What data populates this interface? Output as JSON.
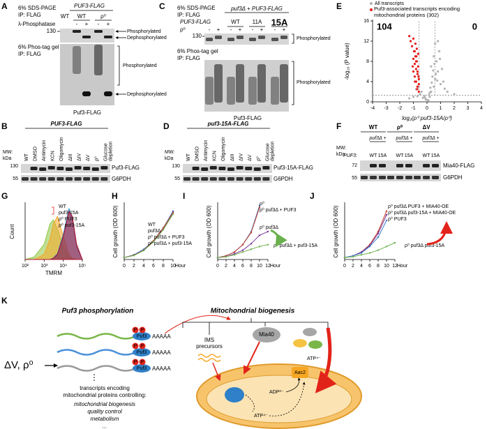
{
  "panels": {
    "A": {
      "label": "A",
      "gel_top": "6% SDS-PAGE",
      "ip_top": "IP: FLAG",
      "construct": "PUF3-FLAG",
      "strains": [
        "WT",
        "WT",
        "ρ⁰"
      ],
      "treatment": "λ-Phosphatase",
      "treatment_signs": [
        "-",
        "+",
        "-",
        "+"
      ],
      "mw": "130",
      "top_bands": [
        "Phosphorylated",
        "Dephosphorylated"
      ],
      "gel_bottom": "6% Phos-tag gel",
      "ip_bottom": "IP: FLAG",
      "bottom_bands": [
        "Phosphorylated",
        "Dephosphorylated"
      ],
      "blot": "Puf3-FLAG"
    },
    "B": {
      "label": "B",
      "construct": "PUF3-FLAG",
      "mw_label": "MW:",
      "mw_unit": "kDa",
      "lanes": [
        "WT",
        "DMSO",
        "Antimycin",
        "KCN",
        "Oligomycin",
        "ΔIII",
        "ΔIV",
        "ΔV",
        "ρ⁰",
        "Glucose depletion"
      ],
      "lane_colors": [
        "#000000",
        "#000000",
        "#000000",
        "#000000",
        "#d0021b",
        "#000000",
        "#000000",
        "#d0021b",
        "#d0021b",
        "#d0021b"
      ],
      "mw": [
        "130",
        "55"
      ],
      "blots": [
        "Puf3-FLAG",
        "G6PDH"
      ]
    },
    "C": {
      "label": "C",
      "gel_top": "6% SDS-PAGE",
      "ip_top": "IP: FLAG",
      "construct": "puf3Δ + PUF3-FLAG",
      "groups": [
        "PUF3-FLAG",
        "WT",
        "11A",
        "15A"
      ],
      "group_colors": [
        "#000000",
        "#000000",
        "#000000",
        "#d0021b"
      ],
      "treatment": "ρ⁰",
      "treatment_signs": [
        "-",
        "+",
        "-",
        "+",
        "-",
        "+",
        "-",
        "+"
      ],
      "mw": "130",
      "top_band": "Phosphorylated",
      "gel_bottom": "6% Phos-tag gel",
      "ip_bottom": "IP: FLAG",
      "bottom_band": "Phosphorylated",
      "blot": "Puf3-FLAG"
    },
    "D": {
      "label": "D",
      "construct": "puf3-15A-FLAG",
      "mw_label": "MW:",
      "mw_unit": "kDa",
      "lanes": [
        "WT",
        "DMSO",
        "Antimycin",
        "KCN",
        "Oligomycin",
        "ΔIII",
        "ΔIV",
        "ΔV",
        "ρ⁰",
        "Glucose depletion"
      ],
      "mw": [
        "130",
        "55"
      ],
      "blots": [
        "Puf3-15A-FLAG",
        "G6PDH"
      ]
    },
    "F": {
      "label": "F",
      "groups": [
        "WT",
        "ρ⁰",
        "ΔV"
      ],
      "subgroup": "puf3Δ +",
      "mw_label": "MW:",
      "mw_unit": "kDa",
      "row_label": "PUF3:",
      "alleles": [
        "WT",
        "15A"
      ],
      "allele_colors": [
        "#000000",
        "#d0021b"
      ],
      "mw": [
        "72",
        "55"
      ],
      "blots": [
        "Mia40-FLAG",
        "G6PDH"
      ]
    },
    "K": {
      "label": "K",
      "left_title": "Puf3 phosphorylation",
      "right_title": "Mitochondrial biogenesis",
      "stimulus": "ΔV, ρ⁰",
      "protein": "Puf3",
      "phospho": "P",
      "polya": "AAAAA",
      "vdots": "⋮",
      "caption": [
        "transcripts encoding",
        "mitochondrial proteins controlling:"
      ],
      "processes": [
        "mitochondrial biogenesis",
        "quality control",
        "metabolism",
        "..."
      ],
      "ims": [
        "IMS",
        "precursors"
      ],
      "mia40": "Mia40",
      "carrier": "Aac2",
      "atp": "ATP⁴⁻",
      "adp": "ADP³⁻"
    }
  },
  "chart_data": [
    {
      "type": "scatter",
      "label": "E",
      "xlabel": "log₂(ρ⁰ puf3-15A/ρ⁰)",
      "ylabel": "-log₁₀ (P value)",
      "xlim": [
        -4,
        4
      ],
      "ylim": [
        0,
        16
      ],
      "xticks": [
        -4,
        -3,
        -2,
        -1,
        0,
        1,
        2,
        3,
        4
      ],
      "yticks": [
        0,
        4,
        8,
        12,
        16
      ],
      "annotations": [
        104,
        0
      ],
      "annotation_color": "#d0021b",
      "thresholds": {
        "x": [
          -0.58,
          0.58
        ],
        "y": 1.3
      },
      "series": [
        {
          "name": "All transcripts",
          "color": "#b3b3b3",
          "x": [
            -0.1,
            0.2,
            0.3,
            -0.3,
            0.5,
            0.6,
            -0.5,
            0.8,
            1.0,
            -0.8,
            0.1,
            0.4,
            -0.2,
            0.7,
            1.2,
            0.9,
            -0.4,
            0.3,
            0.6,
            1.5,
            -0.6,
            0.2,
            0.0,
            0.5,
            -1.0,
            0.8,
            1.1,
            0.35,
            -0.15,
            0.65,
            2.0,
            -1.3,
            0.45,
            0.25,
            0.75,
            1.3,
            -0.7,
            0.15,
            0.55,
            0.95
          ],
          "values": [
            0.5,
            1.0,
            2.0,
            0.8,
            3.0,
            4.5,
            1.5,
            6.0,
            3.5,
            2.5,
            0.3,
            5.0,
            1.2,
            8.0,
            4.0,
            10.0,
            2.0,
            7.0,
            11.5,
            2.0,
            3.0,
            1.8,
            0.4,
            9.0,
            1.0,
            12.0,
            6.5,
            3.8,
            0.9,
            5.5,
            1.5,
            0.7,
            6.2,
            2.8,
            4.2,
            2.6,
            1.1,
            1.4,
            7.5,
            8.5
          ]
        },
        {
          "name": "Puf3-associated transcripts encoding mitochondrial proteins (302)",
          "color": "#e41a1c",
          "x": [
            -0.6,
            -0.7,
            -0.8,
            -0.9,
            -1.0,
            -0.65,
            -0.75,
            -0.85,
            -0.95,
            -1.1,
            -1.2,
            -0.6,
            -0.7,
            -0.8,
            -0.9,
            -1.0,
            -0.65,
            -0.75,
            -0.85,
            -1.3,
            -0.6,
            -0.7,
            -0.8,
            -0.9,
            -1.0,
            -0.72,
            -0.88,
            -1.05,
            -0.62,
            -0.78
          ],
          "values": [
            2,
            3,
            4,
            5,
            6,
            7,
            8,
            9,
            10,
            11,
            12,
            4.5,
            5.5,
            6.5,
            7.5,
            8.5,
            9.5,
            10.5,
            11.5,
            13,
            3.5,
            6,
            8,
            10,
            12.5,
            2.5,
            4,
            7,
            5,
            9
          ]
        }
      ]
    },
    {
      "type": "area",
      "label": "G",
      "xlabel": "TMRM",
      "ylabel": "Count",
      "log_x": true,
      "xlim": [
        100,
        100000
      ],
      "ylim": [
        0,
        1.1
      ],
      "xticks": [
        {
          "value": 100,
          "label": "10²"
        },
        {
          "value": 1000,
          "label": "10³"
        },
        {
          "value": 10000,
          "label": "10⁴"
        },
        {
          "value": 100000,
          "label": "10⁵"
        }
      ],
      "x": [
        100,
        300,
        1000,
        2000,
        3000,
        5000,
        10000,
        20000,
        30000,
        50000,
        100000
      ],
      "series": [
        {
          "name": "WT",
          "color": "#b5112f",
          "values": [
            0,
            0,
            0,
            0,
            0.02,
            0.1,
            0.45,
            0.95,
            0.85,
            0.3,
            0
          ]
        },
        {
          "name": "puf3-15A",
          "color": "#2b8cc4",
          "values": [
            0,
            0,
            0,
            0,
            0.03,
            0.12,
            0.5,
            1.0,
            0.8,
            0.25,
            0
          ]
        },
        {
          "name": "ρ⁰ PUF3",
          "color": "#f5a623",
          "values": [
            0,
            0,
            0.1,
            0.4,
            0.7,
            0.85,
            0.45,
            0.1,
            0.02,
            0,
            0
          ]
        },
        {
          "name": "ρ⁰ puf3-15A",
          "color": "#8cc63f",
          "values": [
            0,
            0.05,
            0.3,
            0.7,
            0.78,
            0.6,
            0.25,
            0.05,
            0,
            0,
            0
          ]
        }
      ]
    },
    {
      "type": "line",
      "label": "H",
      "xlabel": "Hour",
      "ylabel": "Cell growth (OD 600)",
      "x": [
        0,
        2,
        4,
        6,
        8,
        10
      ],
      "xlim": [
        0,
        10
      ],
      "xticks": [
        0,
        2,
        4,
        6,
        8,
        10
      ],
      "ylim": [
        0,
        3
      ],
      "series": [
        {
          "name": "WT",
          "color": "#3d7cc9",
          "values": [
            0.1,
            0.25,
            0.55,
            1.0,
            1.7,
            2.6
          ]
        },
        {
          "name": "puf3Δ",
          "color": "#7b3294",
          "values": [
            0.1,
            0.25,
            0.5,
            0.95,
            1.65,
            2.55
          ]
        },
        {
          "name": "ρ⁰ puf3Δ + PUF3",
          "color": "#c0392b",
          "values": [
            0.1,
            0.22,
            0.5,
            1.0,
            1.7,
            2.5
          ]
        },
        {
          "name": "ρ⁰ puf3Δ + puf3-15A",
          "color": "#6ab04c",
          "values": [
            0.1,
            0.22,
            0.48,
            0.95,
            1.6,
            2.45
          ]
        }
      ]
    },
    {
      "type": "line",
      "label": "I",
      "xlabel": "Hour",
      "ylabel": "Cell growth (OD 600)",
      "x": [
        0,
        2,
        4,
        6,
        8,
        10,
        12
      ],
      "xlim": [
        0,
        12
      ],
      "xticks": [
        0,
        2,
        4,
        6,
        8,
        10,
        12
      ],
      "ylim": [
        0,
        3
      ],
      "series": [
        {
          "name": "ρ⁰",
          "color": "#3d7cc9",
          "values": [
            0.1,
            0.2,
            0.4,
            0.8,
            1.5,
            2.9,
            null
          ]
        },
        {
          "name": "ρ⁰ puf3Δ + PUF3",
          "color": "#c0392b",
          "values": [
            0.1,
            0.2,
            0.4,
            0.8,
            1.45,
            2.8,
            null
          ]
        },
        {
          "name": "ρ⁰ puf3Δ",
          "color": "#7b3294",
          "values": [
            0.1,
            0.15,
            0.3,
            0.5,
            0.85,
            1.3,
            1.5
          ]
        },
        {
          "name": "ρ⁰ puf3Δ + puf3-15A",
          "color": "#6ab04c",
          "values": [
            0.1,
            0.15,
            0.25,
            0.4,
            0.55,
            0.7,
            0.8
          ]
        }
      ]
    },
    {
      "type": "line",
      "label": "J",
      "xlabel": "Hour",
      "ylabel": "Cell growth (OD 600)",
      "x": [
        0,
        2,
        4,
        6,
        8,
        10,
        12
      ],
      "xlim": [
        0,
        12
      ],
      "xticks": [
        0,
        2,
        4,
        6,
        8,
        10,
        12
      ],
      "ylim": [
        0,
        3
      ],
      "series": [
        {
          "name": "ρ⁰ puf3Δ PUF3 + MIA40-OE",
          "color": "#c0392b",
          "values": [
            0.1,
            0.2,
            0.4,
            0.8,
            1.5,
            2.6,
            null
          ]
        },
        {
          "name": "ρ⁰ puf3Δ puf3-15A + MIA40-OE",
          "color": "#7b3294",
          "values": [
            0.1,
            0.2,
            0.4,
            0.75,
            1.4,
            2.4,
            null
          ]
        },
        {
          "name": "ρ⁰ PUF3",
          "color": "#3d7cc9",
          "values": [
            0.1,
            0.2,
            0.35,
            0.7,
            1.2,
            2.1,
            null
          ]
        },
        {
          "name": "ρ⁰ puf3Δ puf3-15A",
          "color": "#6ab04c",
          "values": [
            0.1,
            0.15,
            0.25,
            0.35,
            0.5,
            0.7,
            0.9
          ]
        }
      ]
    }
  ]
}
